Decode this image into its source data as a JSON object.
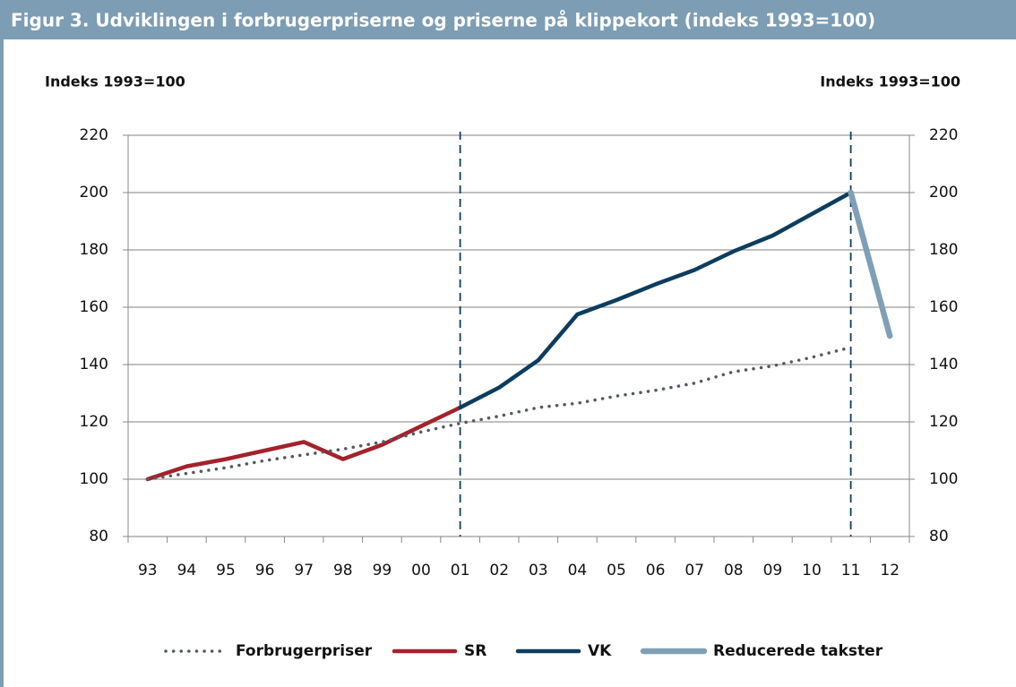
{
  "chart_data": {
    "type": "line",
    "title": "Figur 3. Udviklingen i forbrugerpriserne og priserne på klippekort (indeks 1993=100)",
    "y_label": "Indeks 1993=100",
    "y2_label": "Indeks 1993=100",
    "categories": [
      "93",
      "94",
      "95",
      "96",
      "97",
      "98",
      "99",
      "00",
      "01",
      "02",
      "03",
      "04",
      "05",
      "06",
      "07",
      "08",
      "09",
      "10",
      "11",
      "12"
    ],
    "series": [
      {
        "name": "Forbrugerpriser",
        "color": "#555a60",
        "style": "dotted",
        "values": [
          100,
          102,
          104,
          106.5,
          108.5,
          110.5,
          113,
          116.5,
          119.5,
          122,
          125,
          126.5,
          129,
          131,
          133.5,
          137.5,
          139.5,
          142.5,
          146,
          null
        ]
      },
      {
        "name": "SR",
        "color": "#a3222b",
        "style": "solid",
        "values": [
          100,
          104.5,
          107,
          110,
          113,
          107,
          112,
          118.5,
          125,
          null,
          null,
          null,
          null,
          null,
          null,
          null,
          null,
          null,
          null,
          null
        ]
      },
      {
        "name": "VK",
        "color": "#0d3d5e",
        "style": "solid",
        "values": [
          null,
          null,
          null,
          null,
          null,
          null,
          null,
          null,
          125,
          132,
          141.5,
          157.5,
          162.5,
          168,
          173,
          179.5,
          185,
          192.5,
          200,
          null
        ]
      },
      {
        "name": "Reducerede takster",
        "color": "#7f9fb5",
        "style": "thick",
        "values": [
          null,
          null,
          null,
          null,
          null,
          null,
          null,
          null,
          null,
          null,
          null,
          null,
          null,
          null,
          null,
          null,
          null,
          null,
          200,
          150
        ]
      }
    ],
    "ylim": [
      80,
      220
    ],
    "yticks": [
      80,
      100,
      120,
      140,
      160,
      180,
      200,
      220
    ],
    "y2lim": [
      80,
      220
    ],
    "y2ticks": [
      80,
      100,
      120,
      140,
      160,
      180,
      200,
      220
    ],
    "grid": true,
    "legend": "bottom"
  }
}
